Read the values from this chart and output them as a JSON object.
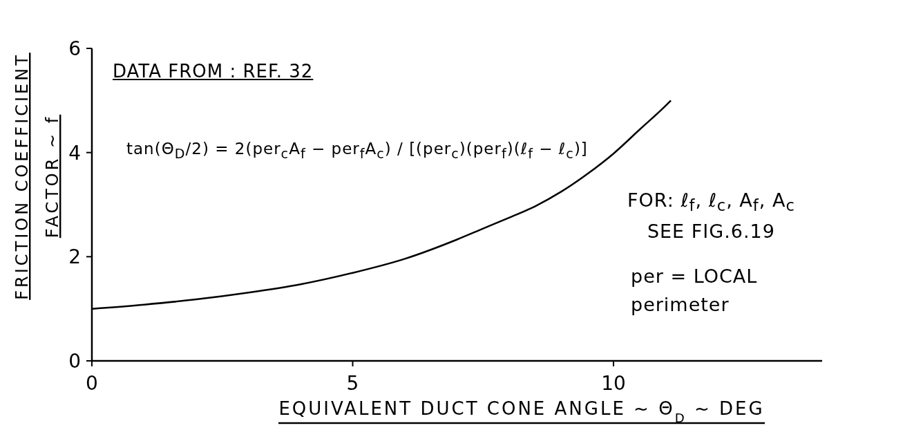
{
  "chart_data": {
    "type": "line",
    "xlabel": "EQUIVALENT DUCT CONE ANGLE ~ Θ$_{D}$ ~ DEG",
    "ylabel": "FRICTION COEFFICIENT\nFACTOR ~ f",
    "x": [
      0,
      1,
      2,
      3,
      4,
      5,
      6,
      7,
      7.5,
      8,
      8.5,
      9,
      9.5,
      10,
      10.5,
      11,
      11.1
    ],
    "values": [
      1.0,
      1.08,
      1.18,
      1.31,
      1.47,
      1.69,
      1.96,
      2.33,
      2.54,
      2.75,
      2.97,
      3.25,
      3.59,
      3.98,
      4.44,
      4.9,
      5.0
    ],
    "color": "#000000",
    "xlim": [
      0,
      14
    ],
    "xticks": [
      0,
      5,
      10
    ],
    "ylim": [
      0,
      6
    ],
    "yticks": [
      0,
      2,
      4,
      6
    ],
    "marker": "none",
    "line_style": "solid",
    "annotations": [
      "DATA FROM : REF. 32",
      "tan(Θ$_{D}$/2) = 2(per$_{c}$A$_{f}$ − per$_{f}$A$_{c}$) / [(per$_{c}$)(per$_{f}$)(ℓ$_{f}$ − ℓ$_{c}$)]",
      "FOR: ℓ$_{f}$, ℓ$_{c}$, A$_{f}$, A$_{c}$\nSEE FIG.6.19",
      "per = LOCAL\nperimeter"
    ]
  }
}
